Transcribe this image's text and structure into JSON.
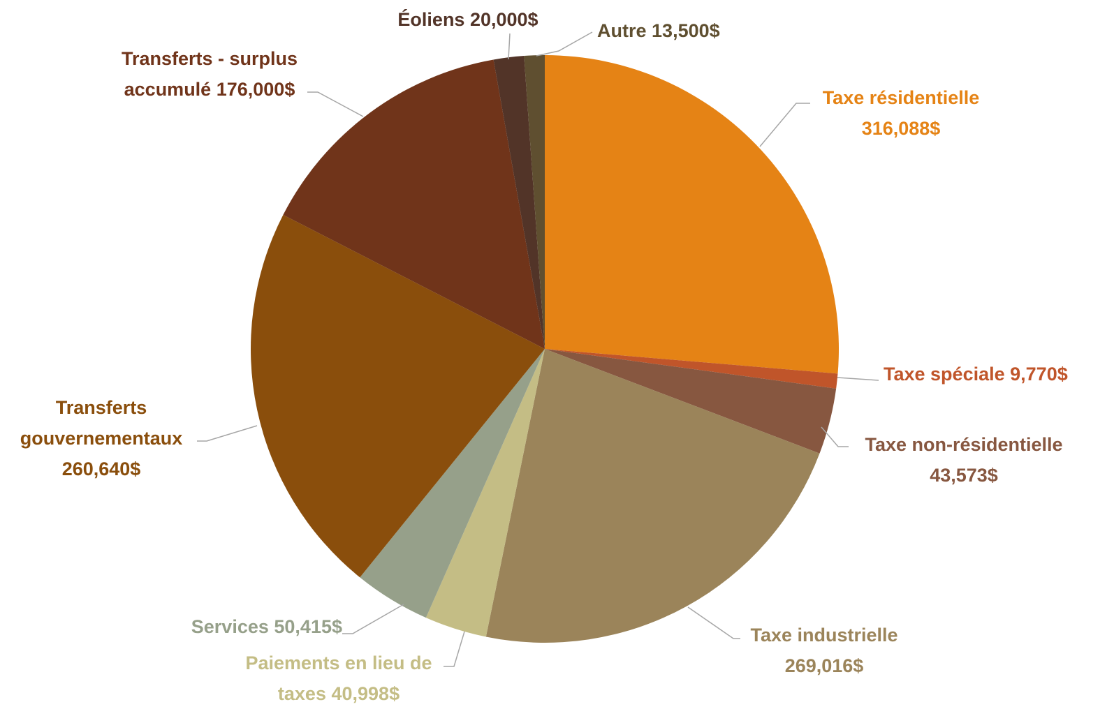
{
  "chart_data": {
    "type": "pie",
    "categories": [
      "Taxe résidentielle",
      "Taxe spéciale",
      "Taxe non-résidentielle",
      "Taxe industrielle",
      "Paiements en lieu de taxes",
      "Services",
      "Transferts gouvernementaux",
      "Transferts - surplus accumulé",
      "Éoliens",
      "Autre"
    ],
    "values": [
      316088,
      9770,
      43573,
      269016,
      40998,
      50415,
      260640,
      176000,
      20000,
      13500
    ],
    "value_labels": [
      "316,088$",
      "9,770$",
      "43,573$",
      "269,016$",
      "40,998$",
      "50,415$",
      "260,640$",
      "176,000$",
      "20,000$",
      "13,500$"
    ],
    "colors": [
      "#e58315",
      "#c0552a",
      "#875740",
      "#9b845a",
      "#c4bd85",
      "#96a08a",
      "#8a4e0c",
      "#70341a",
      "#523428",
      "#5f4f30"
    ]
  }
}
